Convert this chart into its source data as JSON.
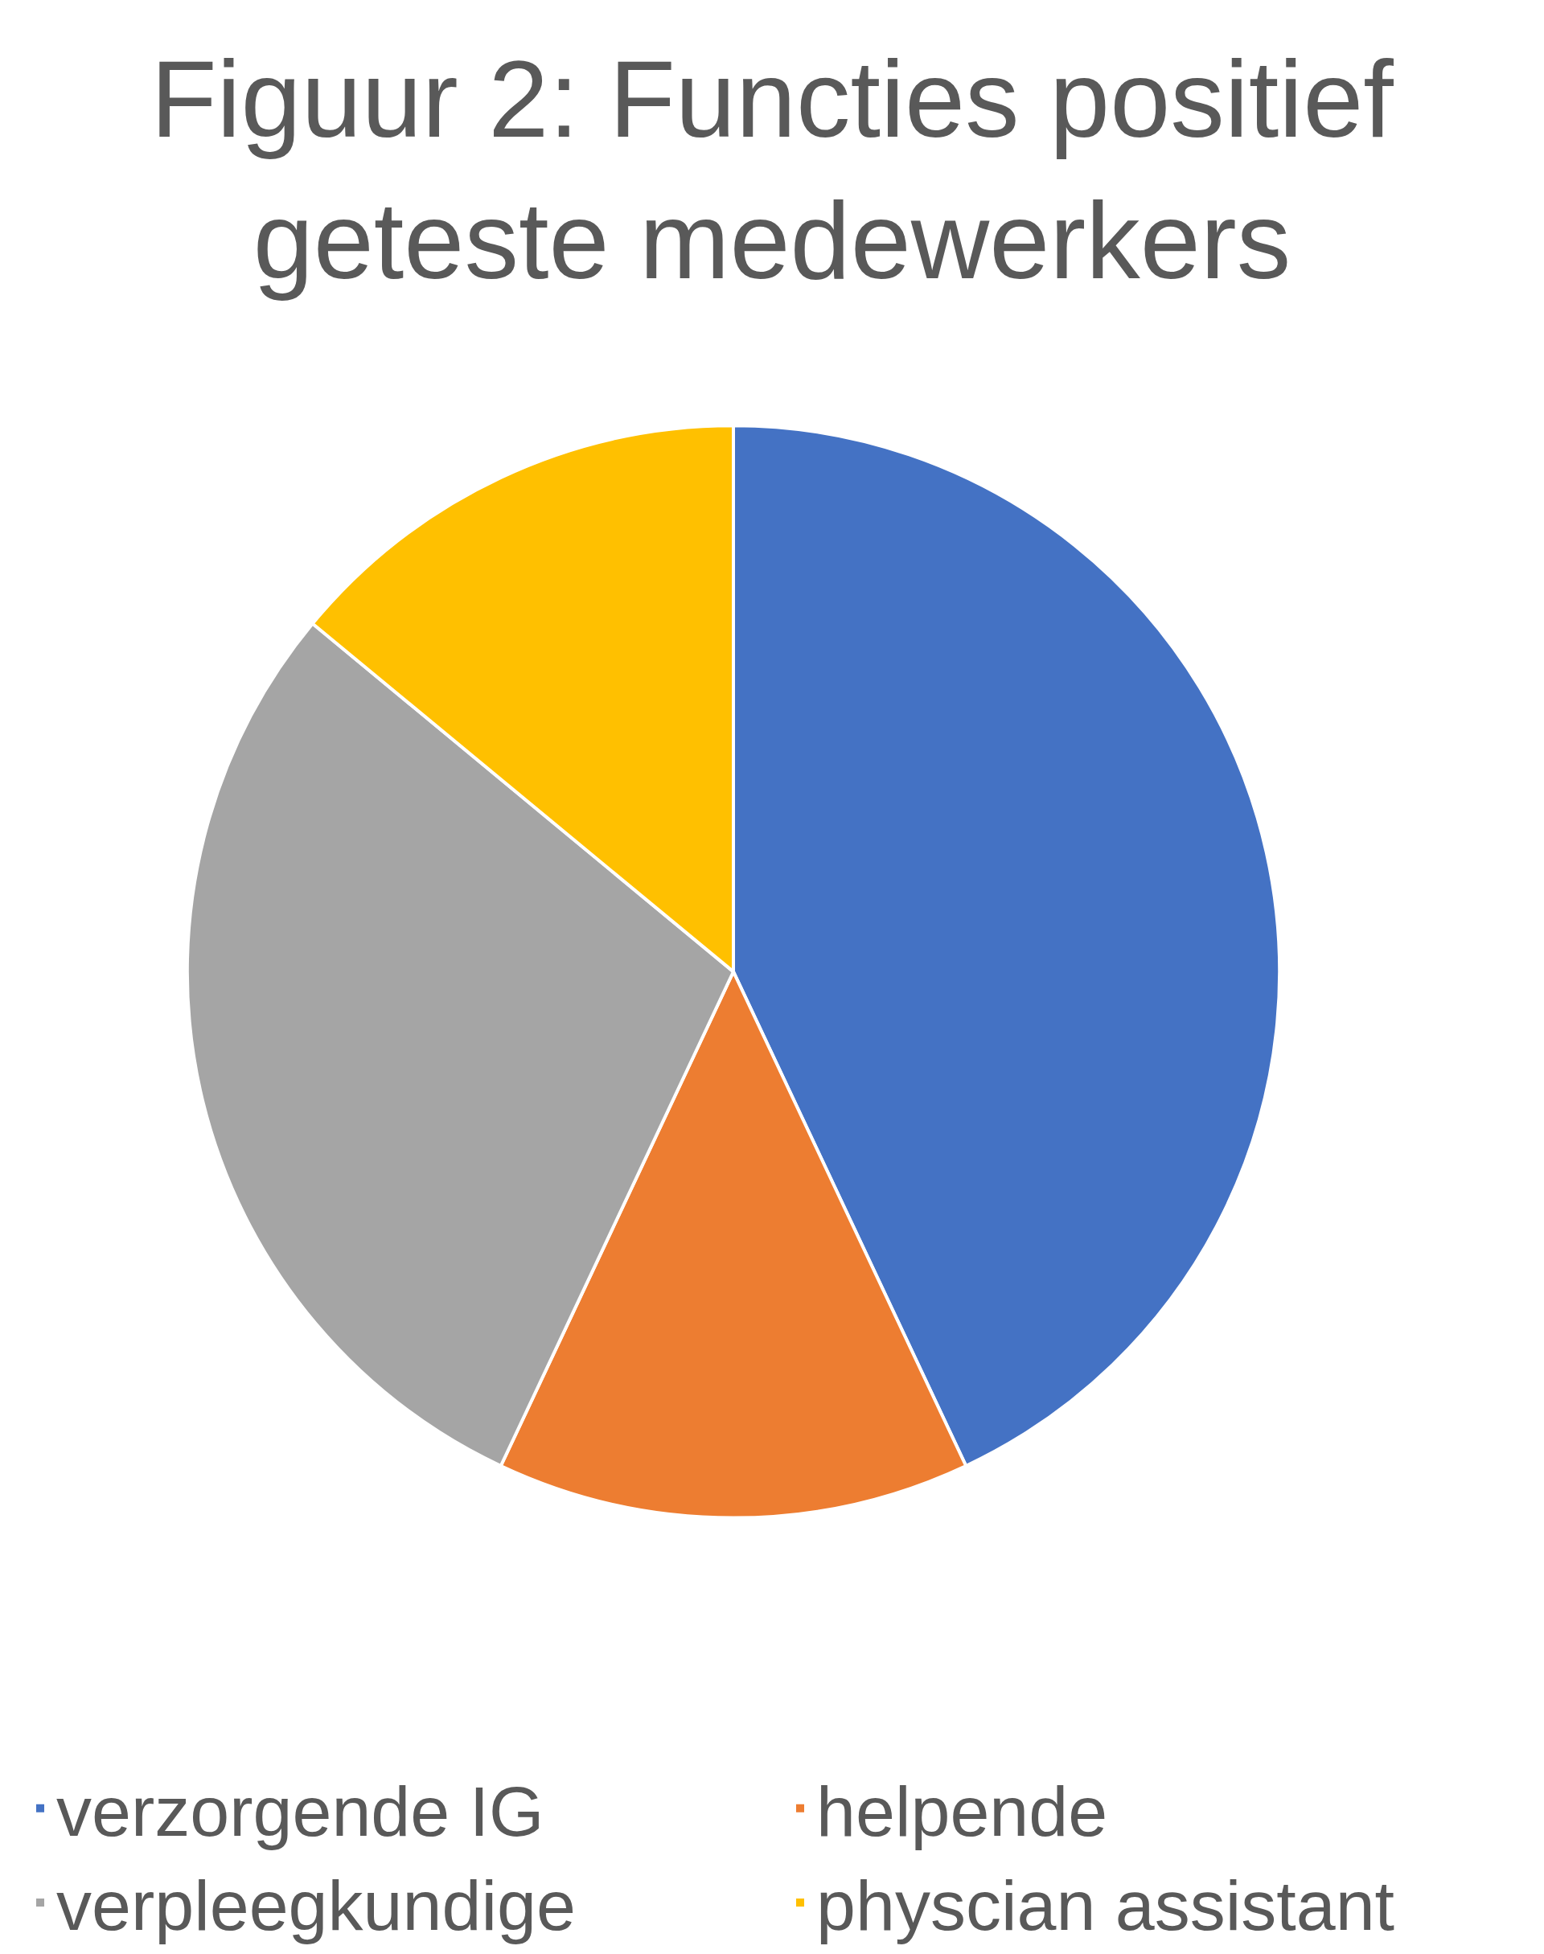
{
  "chart_data": {
    "type": "pie",
    "title": "Figuur 2: Functies positief geteste medewerkers",
    "categories": [
      "verzorgende IG",
      "helpende",
      "verpleegkundige",
      "physcian assistant"
    ],
    "values": [
      43,
      14,
      29,
      14
    ],
    "colors": [
      "#4472c4",
      "#ed7d31",
      "#a5a5a5",
      "#ffc000"
    ],
    "legend": "bottom"
  }
}
